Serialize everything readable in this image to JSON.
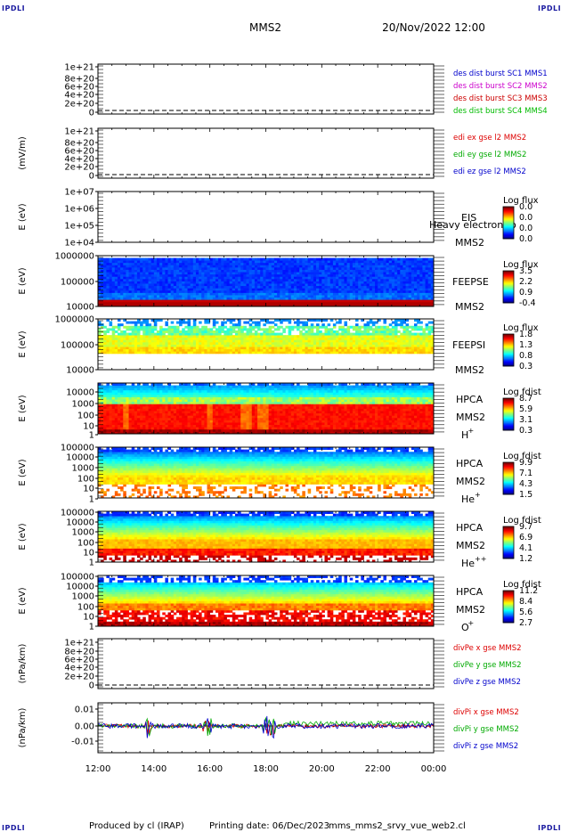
{
  "header": {
    "left_mark": "IPDLI",
    "right_mark": "IPDLI",
    "title": "MMS2",
    "date": "20/Nov/2022 12:00"
  },
  "footer": {
    "producer": "Produced by cl (IRAP)",
    "printing": "Printing date: 06/Dec/2023",
    "file": "mms_mms2_srvy_vue_web2.cl",
    "left_mark": "IPDLI",
    "right_mark": "IPDLI"
  },
  "colors": {
    "mms1": "#0000cc",
    "mms2": "#cc00cc",
    "mms3": "#cc0000",
    "mms4": "#00bb00",
    "x": "#dd0000",
    "y": "#00aa00",
    "z": "#0000cc"
  },
  "chart_data": {
    "type": "line",
    "x_axis": {
      "ticks": [
        "12:00",
        "14:00",
        "16:00",
        "18:00",
        "20:00",
        "22:00",
        "00:00"
      ]
    },
    "panels": [
      {
        "id": "p1",
        "kind": "line",
        "ylabel": "",
        "yticks": [
          "1e+21",
          "8e+20",
          "6e+20",
          "4e+20",
          "2e+20",
          "0"
        ],
        "legend": [
          {
            "label": "des dist burst SC1 MMS1",
            "color": "#0000cc"
          },
          {
            "label": "des dist burst SC2 MMS2",
            "color": "#cc00cc"
          },
          {
            "label": "des dist burst SC3 MMS3",
            "color": "#cc0000"
          },
          {
            "label": "des dist burst SC4 MMS4",
            "color": "#00bb00"
          }
        ]
      },
      {
        "id": "p2",
        "kind": "line",
        "ylabel": "(mV/m)",
        "yticks": [
          "1e+21",
          "8e+20",
          "6e+20",
          "4e+20",
          "2e+20",
          "0"
        ],
        "legend": [
          {
            "label": "edi ex gse l2 MMS2",
            "color": "#dd0000"
          },
          {
            "label": "edi ey gse l2 MMS2",
            "color": "#00aa00"
          },
          {
            "label": "edi ez gse l2 MMS2",
            "color": "#0000cc"
          }
        ]
      },
      {
        "id": "p3",
        "kind": "spec",
        "ylabel": "E (eV)",
        "yticks": [
          "1e+07",
          "1e+06",
          "1e+05",
          "1e+04"
        ],
        "inst": [
          "EIS"
        ],
        "sc": "MMS2",
        "overlay": "Heavy electron to",
        "cbar_title": "Log flux",
        "cbar": [
          "0.0",
          "0.0",
          "0.0",
          "0.0"
        ]
      },
      {
        "id": "p4",
        "kind": "spec",
        "ylabel": "E (eV)",
        "yticks": [
          "1000000",
          "100000",
          "10000"
        ],
        "inst": [
          "FEEPSE"
        ],
        "sc": "MMS2",
        "cbar_title": "Log flux",
        "cbar": [
          "3.5",
          "2.2",
          "0.9",
          "-0.4"
        ]
      },
      {
        "id": "p5",
        "kind": "spec",
        "ylabel": "E (eV)",
        "yticks": [
          "1000000",
          "100000",
          "10000"
        ],
        "inst": [
          "FEEPSI"
        ],
        "sc": "MMS2",
        "cbar_title": "Log flux",
        "cbar": [
          "1.8",
          "1.3",
          "0.8",
          "0.3"
        ]
      },
      {
        "id": "p6",
        "kind": "spec",
        "ylabel": "E (eV)",
        "yticks": [
          "10000",
          "1000",
          "100",
          "10",
          "1"
        ],
        "inst": [
          "HPCA",
          "MMS2"
        ],
        "species": "H",
        "sup": "+",
        "cbar_title": "Log fdist",
        "cbar": [
          "8.7",
          "5.9",
          "3.1",
          "0.3"
        ]
      },
      {
        "id": "p7",
        "kind": "spec",
        "ylabel": "E (eV)",
        "yticks": [
          "100000",
          "10000",
          "1000",
          "100",
          "10",
          "1"
        ],
        "inst": [
          "HPCA",
          "MMS2"
        ],
        "species": "He",
        "sup": "+",
        "cbar_title": "Log fdist",
        "cbar": [
          "9.9",
          "7.1",
          "4.3",
          "1.5"
        ]
      },
      {
        "id": "p8",
        "kind": "spec",
        "ylabel": "E (eV)",
        "yticks": [
          "100000",
          "10000",
          "1000",
          "100",
          "10",
          "1"
        ],
        "inst": [
          "HPCA",
          "MMS2"
        ],
        "species": "He",
        "sup": "++",
        "cbar_title": "Log fdist",
        "cbar": [
          "9.7",
          "6.9",
          "4.1",
          "1.2"
        ]
      },
      {
        "id": "p9",
        "kind": "spec",
        "ylabel": "E (eV)",
        "yticks": [
          "100000",
          "10000",
          "1000",
          "100",
          "10",
          "1"
        ],
        "inst": [
          "HPCA",
          "MMS2"
        ],
        "species": "O",
        "sup": "+",
        "cbar_title": "Log fdist",
        "cbar": [
          "11.2",
          "8.4",
          "5.6",
          "2.7"
        ]
      },
      {
        "id": "p10",
        "kind": "line",
        "ylabel": "(nPa/km)",
        "yticks": [
          "1e+21",
          "8e+20",
          "6e+20",
          "4e+20",
          "2e+20",
          "0"
        ],
        "legend": [
          {
            "label": "divPe x gse MMS2",
            "color": "#dd0000"
          },
          {
            "label": "divPe y gse MMS2",
            "color": "#00aa00"
          },
          {
            "label": "divPe z gse MMS2",
            "color": "#0000cc"
          }
        ]
      },
      {
        "id": "p11",
        "kind": "line",
        "ylabel": "(nPa/km)",
        "yticks": [
          "0.01",
          "0.00",
          "-0.01"
        ],
        "legend": [
          {
            "label": "divPi x gse MMS2",
            "color": "#dd0000"
          },
          {
            "label": "divPi y gse MMS2",
            "color": "#00aa00"
          },
          {
            "label": "divPi z gse MMS2",
            "color": "#0000cc"
          }
        ]
      }
    ]
  }
}
